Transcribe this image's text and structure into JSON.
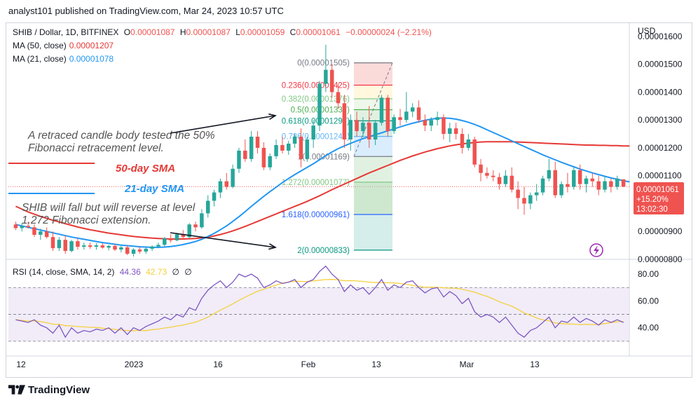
{
  "header": {
    "text": "analyst101 published on TradingView.com, Mar 24, 2023 10:57 UTC"
  },
  "legend": {
    "symbol": "SHIB / Dollar, 1D, BITFINEX",
    "o_label": "O",
    "o": "0.00001087",
    "h_label": "H",
    "h": "0.00001087",
    "l_label": "L",
    "l": "0.00001059",
    "c_label": "C",
    "c": "0.00001061",
    "change": "−0.00000024 (−2.21%)",
    "ma50_label": "MA (50, close)",
    "ma50_value": "0.00001207",
    "ma21_label": "MA (21, close)",
    "ma21_value": "0.00001078"
  },
  "colors": {
    "up": "#26a69a",
    "down": "#ef5350",
    "ma50": "#e53935",
    "ma21": "#2196f3",
    "rsi": "#7e57c2",
    "rsi_sma": "#f4d03f",
    "text": "#131722",
    "axis_text": "#131722",
    "annotation": "#555555",
    "price_tag": "#ef5350"
  },
  "price_axis": {
    "currency": "USD",
    "ticks": [
      "0.00001600",
      "0.00001500",
      "0.00001400",
      "0.00001300",
      "0.00001200",
      "0.00001100",
      "0.00000900",
      "0.00000800"
    ]
  },
  "price_tag": {
    "price": "0.00001061",
    "change": "+15.20%",
    "countdown": "13:02:30"
  },
  "rsi": {
    "label": "RSI (14, close, SMA, 14, 2)",
    "value": "44.36",
    "sma": "42.73",
    "n1": "∅",
    "n2": "∅",
    "ticks": [
      "80.00",
      "60.00",
      "40.00"
    ]
  },
  "time_axis": [
    "12",
    "2023",
    "16",
    "Feb",
    "13",
    "Mar",
    "13"
  ],
  "fib": [
    {
      "level": "0(0.00001505)",
      "color": "#787b86"
    },
    {
      "level": "0.236(0.00001425)",
      "color": "#f23645"
    },
    {
      "level": "0.382(0.00001376)",
      "color": "#81c784"
    },
    {
      "level": "0.5(0.00001337)",
      "color": "#4caf50"
    },
    {
      "level": "0.618(0.00001297)",
      "color": "#089981"
    },
    {
      "level": "0.786(0.00001241)",
      "color": "#64b5f6"
    },
    {
      "level": "1(0.00001169)",
      "color": "#787b86"
    },
    {
      "level": "1.272(0.00001077)",
      "color": "#81c784"
    },
    {
      "level": "1.618(0.00000961)",
      "color": "#2962ff"
    },
    {
      "level": "2(0.00000833)",
      "color": "#089981"
    }
  ],
  "annotations": {
    "a1_line1": "A retraced candle body tested the 50%",
    "a1_line2": "Fibonacci retracement level.",
    "a2_line1": "SHIB  will fall but will reverse at level",
    "a2_line2": "1.272 Fibonacci extension.",
    "ma50_label": "50-day SMA",
    "ma21_label": "21-day SMA"
  },
  "footer": {
    "brand": "TradingView"
  },
  "chart_data": {
    "type": "candlestick",
    "y_range": [
      8e-06,
      1.65e-05
    ],
    "candles": [
      [
        9.25e-06,
        9.35e-06,
        9.05e-06,
        9.12e-06
      ],
      [
        9.12e-06,
        9.3e-06,
        9e-06,
        9.2e-06
      ],
      [
        9.2e-06,
        9.35e-06,
        9.1e-06,
        9.15e-06
      ],
      [
        9.15e-06,
        9.25e-06,
        8.8e-06,
        8.88e-06
      ],
      [
        8.88e-06,
        9.1e-06,
        8.7e-06,
        9e-06
      ],
      [
        9e-06,
        9.15e-06,
        8.75e-06,
        8.8e-06
      ],
      [
        8.8e-06,
        9e-06,
        8.3e-06,
        8.4e-06
      ],
      [
        8.4e-06,
        8.8e-06,
        8.3e-06,
        8.7e-06
      ],
      [
        8.7e-06,
        8.85e-06,
        8.2e-06,
        8.3e-06
      ],
      [
        8.3e-06,
        8.7e-06,
        8.25e-06,
        8.65e-06
      ],
      [
        8.65e-06,
        8.75e-06,
        8.35e-06,
        8.45e-06
      ],
      [
        8.45e-06,
        8.6e-06,
        8.35e-06,
        8.5e-06
      ],
      [
        8.5e-06,
        8.6e-06,
        8.38e-06,
        8.45e-06
      ],
      [
        8.45e-06,
        8.58e-06,
        8.35e-06,
        8.5e-06
      ],
      [
        8.5e-06,
        8.58e-06,
        8.38e-06,
        8.42e-06
      ],
      [
        8.42e-06,
        8.52e-06,
        8.32e-06,
        8.48e-06
      ],
      [
        8.48e-06,
        8.55e-06,
        8.3e-06,
        8.35e-06
      ],
      [
        8.35e-06,
        8.48e-06,
        8.25e-06,
        8.43e-06
      ],
      [
        8.43e-06,
        8.5e-06,
        8.15e-06,
        8.2e-06
      ],
      [
        8.2e-06,
        8.4e-06,
        8.1e-06,
        8.35e-06
      ],
      [
        8.35e-06,
        8.45e-06,
        8.2e-06,
        8.28e-06
      ],
      [
        8.28e-06,
        8.42e-06,
        8.2e-06,
        8.38e-06
      ],
      [
        8.38e-06,
        8.5e-06,
        8.3e-06,
        8.46e-06
      ],
      [
        8.46e-06,
        8.6e-06,
        8.4e-06,
        8.52e-06
      ],
      [
        8.52e-06,
        8.8e-06,
        8.45e-06,
        8.76e-06
      ],
      [
        8.76e-06,
        8.9e-06,
        8.6e-06,
        8.68e-06
      ],
      [
        8.68e-06,
        8.95e-06,
        8.65e-06,
        8.9e-06
      ],
      [
        8.9e-06,
        9.05e-06,
        8.7e-06,
        8.8e-06
      ],
      [
        8.8e-06,
        9.3e-06,
        8.75e-06,
        9.25e-06
      ],
      [
        9.25e-06,
        9.35e-06,
        9e-06,
        9.15e-06
      ],
      [
        9.15e-06,
        9.8e-06,
        9.1e-06,
        9.65e-06
      ],
      [
        9.65e-06,
        1.03e-05,
        9.5e-06,
        1.01e-05
      ],
      [
        1.01e-05,
        1.05e-05,
        9.9e-06,
        1.04e-05
      ],
      [
        1.04e-05,
        1.09e-05,
        1.02e-05,
        1.08e-05
      ],
      [
        1.08e-05,
        1.11e-05,
        1.05e-05,
        1.06e-05
      ],
      [
        1.06e-05,
        1.14e-05,
        1.055e-05,
        1.125e-05
      ],
      [
        1.125e-05,
        1.2e-05,
        1.11e-05,
        1.19e-05
      ],
      [
        1.19e-05,
        1.23e-05,
        1.15e-05,
        1.16e-05
      ],
      [
        1.16e-05,
        1.26e-05,
        1.15e-05,
        1.24e-05
      ],
      [
        1.24e-05,
        1.26e-05,
        1.18e-05,
        1.2e-05
      ],
      [
        1.2e-05,
        1.22e-05,
        1.12e-05,
        1.13e-05
      ],
      [
        1.13e-05,
        1.18e-05,
        1.12e-05,
        1.17e-05
      ],
      [
        1.17e-05,
        1.23e-05,
        1.16e-05,
        1.21e-05
      ],
      [
        1.21e-05,
        1.24e-05,
        1.18e-05,
        1.19e-05
      ],
      [
        1.19e-05,
        1.225e-05,
        1.175e-05,
        1.215e-05
      ],
      [
        1.215e-05,
        1.25e-05,
        1.2e-05,
        1.24e-05
      ],
      [
        1.24e-05,
        1.27e-05,
        1.13e-05,
        1.16e-05
      ],
      [
        1.16e-05,
        1.24e-05,
        1.15e-05,
        1.23e-05
      ],
      [
        1.23e-05,
        1.3e-05,
        1.2e-05,
        1.28e-05
      ],
      [
        1.28e-05,
        1.44e-05,
        1.26e-05,
        1.43e-05
      ],
      [
        1.43e-05,
        1.57e-05,
        1.4e-05,
        1.48e-05
      ],
      [
        1.48e-05,
        1.5e-05,
        1.38e-05,
        1.4e-05
      ],
      [
        1.4e-05,
        1.43e-05,
        1.34e-05,
        1.36e-05
      ],
      [
        1.36e-05,
        1.39e-05,
        1.2e-05,
        1.23e-05
      ],
      [
        1.23e-05,
        1.32e-05,
        1.19e-05,
        1.3e-05
      ],
      [
        1.3e-05,
        1.33e-05,
        1.24e-05,
        1.26e-05
      ],
      [
        1.26e-05,
        1.31e-05,
        1.24e-05,
        1.29e-05
      ],
      [
        1.29e-05,
        1.35e-05,
        1.2e-05,
        1.23e-05
      ],
      [
        1.23e-05,
        1.3e-05,
        1.21e-05,
        1.29e-05
      ],
      [
        1.29e-05,
        1.39e-05,
        1.28e-05,
        1.38e-05
      ],
      [
        1.38e-05,
        1.39e-05,
        1.24e-05,
        1.26e-05
      ],
      [
        1.26e-05,
        1.32e-05,
        1.25e-05,
        1.31e-05
      ],
      [
        1.31e-05,
        1.34e-05,
        1.28e-05,
        1.3e-05
      ],
      [
        1.3e-05,
        1.4e-05,
        1.29e-05,
        1.33e-05
      ],
      [
        1.33e-05,
        1.36e-05,
        1.31e-05,
        1.345e-05
      ],
      [
        1.345e-05,
        1.37e-05,
        1.29e-05,
        1.3e-05
      ],
      [
        1.3e-05,
        1.32e-05,
        1.26e-05,
        1.28e-05
      ],
      [
        1.28e-05,
        1.31e-05,
        1.26e-05,
        1.3e-05
      ],
      [
        1.3e-05,
        1.33e-05,
        1.28e-05,
        1.31e-05
      ],
      [
        1.31e-05,
        1.32e-05,
        1.23e-05,
        1.25e-05
      ],
      [
        1.25e-05,
        1.29e-05,
        1.22e-05,
        1.27e-05
      ],
      [
        1.27e-05,
        1.29e-05,
        1.23e-05,
        1.25e-05
      ],
      [
        1.25e-05,
        1.27e-05,
        1.18e-05,
        1.2e-05
      ],
      [
        1.2e-05,
        1.25e-05,
        1.19e-05,
        1.23e-05
      ],
      [
        1.23e-05,
        1.24e-05,
        1.13e-05,
        1.14e-05
      ],
      [
        1.14e-05,
        1.16e-05,
        1.08e-05,
        1.11e-05
      ],
      [
        1.11e-05,
        1.13e-05,
        1.09e-05,
        1.1e-05
      ],
      [
        1.1e-05,
        1.12e-05,
        1.08e-05,
        1.095e-05
      ],
      [
        1.095e-05,
        1.11e-05,
        1.05e-05,
        1.07e-05
      ],
      [
        1.07e-05,
        1.12e-05,
        1.06e-05,
        1.1e-05
      ],
      [
        1.1e-05,
        1.13e-05,
        1.04e-05,
        1.05e-05
      ],
      [
        1.05e-05,
        1.08e-05,
        9.8e-06,
        1.02e-05
      ],
      [
        1.02e-05,
        1.06e-05,
        9.6e-06,
        1e-05
      ],
      [
        1e-05,
        1.04e-05,
        9.8e-06,
        1.03e-05
      ],
      [
        1.03e-05,
        1.07e-05,
        1.01e-05,
        1.04e-05
      ],
      [
        1.04e-05,
        1.1e-05,
        1.03e-05,
        1.09e-05
      ],
      [
        1.09e-05,
        1.16e-05,
        1.08e-05,
        1.12e-05
      ],
      [
        1.12e-05,
        1.15e-05,
        1.02e-05,
        1.03e-05
      ],
      [
        1.03e-05,
        1.08e-05,
        1.02e-05,
        1.07e-05
      ],
      [
        1.07e-05,
        1.11e-05,
        1.04e-05,
        1.06e-05
      ],
      [
        1.06e-05,
        1.13e-05,
        1.05e-05,
        1.12e-05
      ],
      [
        1.12e-05,
        1.14e-05,
        1.05e-05,
        1.07e-05
      ],
      [
        1.07e-05,
        1.1e-05,
        1.04e-05,
        1.09e-05
      ],
      [
        1.09e-05,
        1.11e-05,
        1.06e-05,
        1.08e-05
      ],
      [
        1.08e-05,
        1.1e-05,
        1.03e-05,
        1.05e-05
      ],
      [
        1.05e-05,
        1.1e-05,
        1.04e-05,
        1.08e-05
      ],
      [
        1.08e-05,
        1.09e-05,
        1.04e-05,
        1.06e-05
      ],
      [
        1.06e-05,
        1.1e-05,
        1.05e-05,
        1.09e-05
      ],
      [
        1.087e-05,
        1.087e-05,
        1.059e-05,
        1.061e-05
      ]
    ],
    "ma50": [
      9.9e-06,
      9.8e-06,
      9.7e-06,
      9.62e-06,
      9.54e-06,
      9.47e-06,
      9.4e-06,
      9.34e-06,
      9.28e-06,
      9.22e-06,
      9.16e-06,
      9.11e-06,
      9.06e-06,
      9.02e-06,
      8.98e-06,
      8.94e-06,
      8.91e-06,
      8.88e-06,
      8.85e-06,
      8.82e-06,
      8.8e-06,
      8.78e-06,
      8.76e-06,
      8.75e-06,
      8.74e-06,
      8.73e-06,
      8.73e-06,
      8.73e-06,
      8.74e-06,
      8.75e-06,
      8.77e-06,
      8.8e-06,
      8.84e-06,
      8.89e-06,
      8.95e-06,
      9.02e-06,
      9.1e-06,
      9.18e-06,
      9.27e-06,
      9.36e-06,
      9.45e-06,
      9.54e-06,
      9.63e-06,
      9.72e-06,
      9.81e-06,
      9.9e-06,
      9.99e-06,
      1.008e-05,
      1.018e-05,
      1.028e-05,
      1.039e-05,
      1.05e-05,
      1.06e-05,
      1.07e-05,
      1.08e-05,
      1.09e-05,
      1.1e-05,
      1.11e-05,
      1.119e-05,
      1.128e-05,
      1.137e-05,
      1.146e-05,
      1.155e-05,
      1.163e-05,
      1.171e-05,
      1.178e-05,
      1.185e-05,
      1.191e-05,
      1.197e-05,
      1.202e-05,
      1.207e-05,
      1.211e-05,
      1.214e-05,
      1.217e-05,
      1.219e-05,
      1.221e-05,
      1.222e-05,
      1.222e-05,
      1.222e-05,
      1.222e-05,
      1.222e-05,
      1.221e-05,
      1.22e-05,
      1.219e-05,
      1.218e-05,
      1.217e-05,
      1.216e-05,
      1.215e-05,
      1.214e-05,
      1.213e-05,
      1.212e-05,
      1.211e-05,
      1.21e-05,
      1.21e-05,
      1.209e-05,
      1.209e-05,
      1.208e-05,
      1.208e-05,
      1.207e-05,
      1.207e-05
    ],
    "ma21": [
      9.25e-06,
      9.2e-06,
      9.15e-06,
      9.1e-06,
      9.05e-06,
      9e-06,
      8.95e-06,
      8.9e-06,
      8.85e-06,
      8.8e-06,
      8.76e-06,
      8.72e-06,
      8.68e-06,
      8.64e-06,
      8.6e-06,
      8.57e-06,
      8.54e-06,
      8.51e-06,
      8.49e-06,
      8.47e-06,
      8.45e-06,
      8.44e-06,
      8.43e-06,
      8.43e-06,
      8.44e-06,
      8.46e-06,
      8.49e-06,
      8.53e-06,
      8.58e-06,
      8.64e-06,
      8.72e-06,
      8.82e-06,
      8.93e-06,
      9.06e-06,
      9.2e-06,
      9.36e-06,
      9.53e-06,
      9.71e-06,
      9.9e-06,
      1.008e-05,
      1.026e-05,
      1.043e-05,
      1.059e-05,
      1.075e-05,
      1.09e-05,
      1.104e-05,
      1.117e-05,
      1.13e-05,
      1.143e-05,
      1.157e-05,
      1.172e-05,
      1.185e-05,
      1.197e-05,
      1.207e-05,
      1.216e-05,
      1.225e-05,
      1.233e-05,
      1.24e-05,
      1.247e-05,
      1.254e-05,
      1.261e-05,
      1.268e-05,
      1.275e-05,
      1.282e-05,
      1.288e-05,
      1.294e-05,
      1.299e-05,
      1.303e-05,
      1.306e-05,
      1.307e-05,
      1.306e-05,
      1.303e-05,
      1.298e-05,
      1.292e-05,
      1.284e-05,
      1.275e-05,
      1.265e-05,
      1.255e-05,
      1.245e-05,
      1.235e-05,
      1.225e-05,
      1.215e-05,
      1.205e-05,
      1.195e-05,
      1.185e-05,
      1.175e-05,
      1.166e-05,
      1.157e-05,
      1.148e-05,
      1.14e-05,
      1.132e-05,
      1.124e-05,
      1.117e-05,
      1.11e-05,
      1.104e-05,
      1.098e-05,
      1.092e-05,
      1.087e-05,
      1.082e-05,
      1.078e-05
    ],
    "rsi": [
      46,
      45,
      44,
      46,
      42,
      40,
      36,
      42,
      33,
      40,
      36,
      38,
      37,
      39,
      38,
      40,
      36,
      40,
      35,
      40,
      38,
      41,
      43,
      45,
      48,
      46,
      50,
      48,
      55,
      53,
      62,
      68,
      72,
      75,
      70,
      74,
      80,
      78,
      80,
      77,
      70,
      72,
      75,
      73,
      74,
      76,
      70,
      74,
      76,
      82,
      86,
      80,
      76,
      67,
      72,
      68,
      70,
      65,
      70,
      76,
      68,
      72,
      70,
      74,
      75,
      70,
      66,
      69,
      70,
      63,
      67,
      64,
      58,
      62,
      52,
      48,
      50,
      48,
      44,
      48,
      42,
      36,
      33,
      38,
      40,
      44,
      48,
      40,
      45,
      44,
      48,
      44,
      47,
      45,
      42,
      46,
      44,
      46,
      44
    ]
  }
}
